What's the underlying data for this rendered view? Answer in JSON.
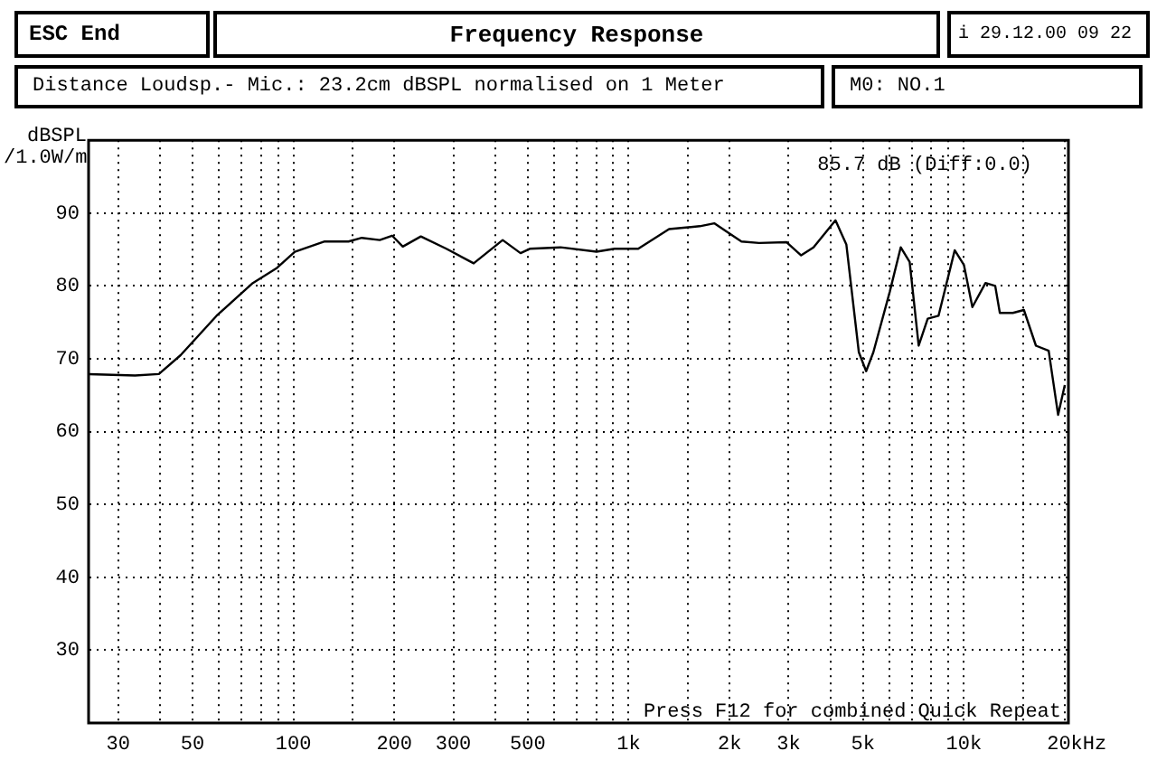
{
  "chart_data": {
    "type": "line",
    "title": "Frequency Response",
    "ylabel": "dBSPL /1.0W/m",
    "annotations": [
      "ESC End",
      "i 29.12.00 09 22",
      "Distance Loudsp.- Mic.: 23.2cm dBSPL normalised on 1 Meter",
      "M0: NO.1",
      "85.7 dB (Diff:0.0)",
      "Press F12 for combined Quick Repeat"
    ],
    "x": [
      24.5,
      33.7,
      39.7,
      46.1,
      59,
      75.7,
      88.9,
      101,
      124,
      146,
      160,
      181,
      197,
      212,
      240,
      286,
      345,
      421,
      476,
      507,
      626,
      802,
      908,
      1068,
      1320,
      1630,
      1800,
      2170,
      2450,
      2960,
      3270,
      3560,
      4140,
      4460,
      4860,
      5110,
      5370,
      6010,
      6480,
      6890,
      7330,
      7800,
      8400,
      9390,
      10000,
      10600,
      11600,
      12400,
      12800,
      14000,
      15100,
      16400,
      17900,
      19100,
      20000
    ],
    "series": [
      {
        "color": "#000000",
        "values": [
          67.9,
          67.7,
          67.9,
          70.5,
          75.9,
          80.4,
          82.4,
          84.7,
          86.1,
          86.1,
          86.6,
          86.3,
          86.9,
          85.4,
          86.8,
          85.1,
          83.1,
          86.3,
          84.5,
          85.1,
          85.3,
          84.7,
          85.1,
          85.1,
          87.8,
          88.2,
          88.6,
          86.1,
          85.9,
          86,
          84.2,
          85.3,
          89,
          85.7,
          70.9,
          68.3,
          70.9,
          79.2,
          85.3,
          83.3,
          71.8,
          75.5,
          75.9,
          84.9,
          82.9,
          77.1,
          80.4,
          80,
          76.3,
          76.3,
          76.7,
          71.8,
          71.1,
          62.3,
          66.4
        ]
      }
    ],
    "log": "x",
    "xlim": [
      24.5,
      20500
    ],
    "xticks": [
      30,
      {
        "value": 40,
        "label": null
      },
      50,
      {
        "value": 60,
        "label": null
      },
      {
        "value": 70,
        "label": null
      },
      {
        "value": 80,
        "label": null
      },
      {
        "value": 90,
        "label": null
      },
      100,
      {
        "value": 150,
        "label": null
      },
      200,
      300,
      {
        "value": 400,
        "label": null
      },
      500,
      {
        "value": 600,
        "label": null
      },
      {
        "value": 700,
        "label": null
      },
      {
        "value": 800,
        "label": null
      },
      {
        "value": 900,
        "label": null
      },
      {
        "value": 1000,
        "label": "1k"
      },
      {
        "value": 1500,
        "label": null
      },
      {
        "value": 2000,
        "label": "2k"
      },
      {
        "value": 3000,
        "label": "3k"
      },
      {
        "value": 4000,
        "label": null
      },
      {
        "value": 5000,
        "label": "5k"
      },
      {
        "value": 6000,
        "label": null
      },
      {
        "value": 7000,
        "label": null
      },
      {
        "value": 8000,
        "label": null
      },
      {
        "value": 9000,
        "label": null
      },
      {
        "value": 10000,
        "label": "10k"
      },
      {
        "value": 15000,
        "label": null
      },
      {
        "value": 20000,
        "label": "20k"
      }
    ],
    "xlabel": "Hz",
    "ylim": [
      20,
      100
    ],
    "yticks": [
      30,
      40,
      50,
      60,
      70,
      80,
      90
    ],
    "grid": true
  }
}
